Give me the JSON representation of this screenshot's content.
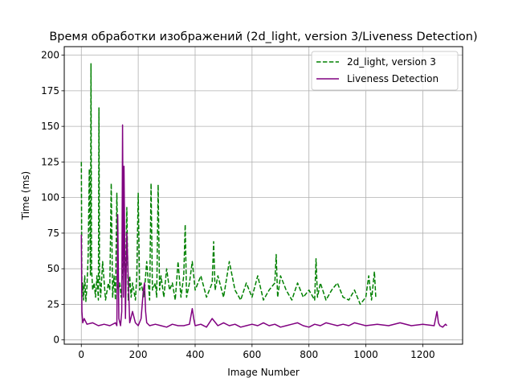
{
  "chart_data": {
    "type": "line",
    "title": "Время обработки изображений (2d_light, version 3/Liveness Detection)",
    "xlabel": "Image Number",
    "ylabel": "Time (ms)",
    "xlim": [
      -60,
      1340
    ],
    "ylim": [
      -3,
      206
    ],
    "xticks": [
      0,
      200,
      400,
      600,
      800,
      1000,
      1200
    ],
    "yticks": [
      0,
      25,
      50,
      75,
      100,
      125,
      150,
      175,
      200
    ],
    "grid": true,
    "legend_position": "top-right",
    "series": [
      {
        "name": "2d_light, version 3",
        "color": "#008000",
        "style": "dashed",
        "x": [
          0,
          2,
          5,
          8,
          12,
          16,
          20,
          24,
          28,
          32,
          34,
          36,
          40,
          45,
          50,
          55,
          60,
          62,
          64,
          68,
          75,
          85,
          95,
          100,
          105,
          110,
          115,
          120,
          125,
          130,
          135,
          140,
          145,
          150,
          155,
          160,
          165,
          170,
          175,
          180,
          190,
          195,
          200,
          205,
          210,
          220,
          230,
          240,
          245,
          250,
          260,
          265,
          270,
          275,
          280,
          290,
          300,
          310,
          320,
          330,
          340,
          350,
          360,
          365,
          370,
          380,
          390,
          400,
          420,
          440,
          460,
          465,
          470,
          480,
          500,
          520,
          540,
          560,
          580,
          600,
          620,
          640,
          660,
          680,
          685,
          690,
          700,
          720,
          740,
          760,
          780,
          800,
          820,
          825,
          830,
          840,
          860,
          880,
          900,
          920,
          940,
          960,
          980,
          1000,
          1010,
          1020,
          1030,
          1035
        ],
        "values": [
          125,
          30,
          40,
          28,
          45,
          27,
          38,
          60,
          120,
          45,
          194,
          50,
          35,
          40,
          30,
          45,
          28,
          163,
          45,
          30,
          55,
          28,
          40,
          35,
          110,
          30,
          45,
          28,
          103,
          35,
          40,
          30,
          50,
          73,
          35,
          93,
          28,
          45,
          30,
          40,
          28,
          45,
          103,
          35,
          40,
          30,
          55,
          28,
          110,
          35,
          40,
          30,
          109,
          35,
          45,
          30,
          50,
          35,
          40,
          28,
          55,
          30,
          45,
          81,
          30,
          40,
          55,
          35,
          45,
          30,
          40,
          69,
          35,
          45,
          30,
          55,
          35,
          28,
          40,
          30,
          45,
          28,
          35,
          40,
          60,
          30,
          45,
          35,
          28,
          40,
          30,
          35,
          28,
          57,
          30,
          40,
          28,
          35,
          40,
          30,
          28,
          35,
          25,
          30,
          45,
          28,
          48,
          30
        ]
      },
      {
        "name": "Liveness Detection",
        "color": "#800080",
        "style": "solid",
        "x": [
          0,
          2,
          5,
          10,
          20,
          40,
          60,
          80,
          100,
          120,
          125,
          128,
          132,
          138,
          142,
          145,
          148,
          150,
          155,
          160,
          170,
          180,
          190,
          200,
          210,
          218,
          222,
          226,
          230,
          240,
          260,
          280,
          300,
          320,
          340,
          360,
          380,
          390,
          395,
          400,
          420,
          440,
          460,
          480,
          500,
          520,
          540,
          560,
          580,
          600,
          620,
          640,
          660,
          680,
          700,
          720,
          740,
          760,
          780,
          800,
          820,
          840,
          860,
          880,
          900,
          920,
          940,
          960,
          980,
          1000,
          1040,
          1080,
          1120,
          1160,
          1200,
          1240,
          1250,
          1255,
          1260,
          1270,
          1280,
          1285
        ],
        "values": [
          74,
          20,
          12,
          15,
          11,
          12,
          10,
          11,
          10,
          12,
          10,
          88,
          15,
          10,
          20,
          151,
          30,
          122,
          15,
          75,
          12,
          20,
          12,
          10,
          15,
          35,
          40,
          20,
          12,
          10,
          11,
          10,
          9,
          11,
          10,
          10,
          11,
          22,
          15,
          10,
          11,
          9,
          15,
          10,
          12,
          10,
          11,
          9,
          10,
          11,
          10,
          12,
          10,
          11,
          9,
          10,
          11,
          12,
          10,
          9,
          11,
          10,
          12,
          11,
          10,
          11,
          10,
          12,
          11,
          10,
          11,
          10,
          12,
          10,
          11,
          10,
          20,
          12,
          10,
          9,
          11,
          10
        ]
      }
    ]
  }
}
